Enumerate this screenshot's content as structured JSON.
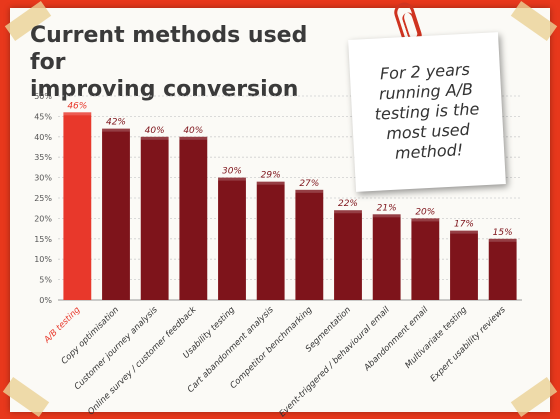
{
  "title_lines": [
    "Current methods used for",
    "improving conversion"
  ],
  "note_lines": [
    "For 2 years",
    "running A/B",
    "testing is the",
    "most used",
    "method!"
  ],
  "colors": {
    "highlight": "#e8382b",
    "bar": "#7e141b",
    "background": "#e8381c"
  },
  "chart_data": {
    "type": "bar",
    "title": "Current methods used for improving conversion",
    "categories": [
      "A/B testing",
      "Copy optimisation",
      "Customer journey analysis",
      "Online survey / customer feedback",
      "Usability testing",
      "Cart abandonment analysis",
      "Competitor benchmarking",
      "Segmentation",
      "Event-triggered / behavioural email",
      "Abandonment email",
      "Multivariate testing",
      "Expert usability reviews"
    ],
    "values": [
      46,
      42,
      40,
      40,
      30,
      29,
      27,
      22,
      21,
      20,
      17,
      15
    ],
    "value_labels": [
      "46%",
      "42%",
      "40%",
      "40%",
      "30%",
      "29%",
      "27%",
      "22%",
      "21%",
      "20%",
      "17%",
      "15%"
    ],
    "y_ticks": [
      0,
      5,
      10,
      15,
      20,
      25,
      30,
      35,
      40,
      45,
      50
    ],
    "y_tick_labels": [
      "0%",
      "5%",
      "10%",
      "15%",
      "20%",
      "25%",
      "30%",
      "35%",
      "40%",
      "45%",
      "50%"
    ],
    "ylim": [
      0,
      50
    ],
    "grid": true,
    "highlight_index": 0
  }
}
